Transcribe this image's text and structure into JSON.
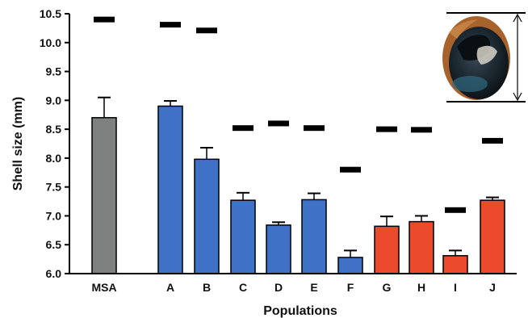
{
  "chart_data": {
    "type": "bar",
    "title": "",
    "xlabel": "Populations",
    "ylabel": "Shell size (mm)",
    "ylim": [
      6.0,
      10.5
    ],
    "yticks": [
      "6.0",
      "6.5",
      "7.0",
      "7.5",
      "8.0",
      "8.5",
      "9.0",
      "9.5",
      "10.0",
      "10.5"
    ],
    "categories": [
      "MSA",
      "A",
      "B",
      "C",
      "D",
      "E",
      "F",
      "G",
      "H",
      "I",
      "J"
    ],
    "values": [
      8.7,
      8.9,
      7.98,
      7.27,
      6.84,
      7.28,
      6.28,
      6.82,
      6.9,
      6.31,
      7.27
    ],
    "errors": [
      0.35,
      0.09,
      0.2,
      0.13,
      0.05,
      0.11,
      0.12,
      0.17,
      0.1,
      0.09,
      0.05
    ],
    "max_marks": [
      10.4,
      10.31,
      10.21,
      8.52,
      8.6,
      8.52,
      7.8,
      8.5,
      8.49,
      7.1,
      8.3
    ],
    "bar_colors": [
      "#7f8181",
      "#3f72c6",
      "#3f72c6",
      "#3f72c6",
      "#3f72c6",
      "#3f72c6",
      "#3f72c6",
      "#ec4a2c",
      "#ec4a2c",
      "#ec4a2c",
      "#ec4a2c"
    ],
    "mark_color": "#000000",
    "grid": false,
    "legend": "none",
    "inset_image": "snail-shell-photo"
  }
}
